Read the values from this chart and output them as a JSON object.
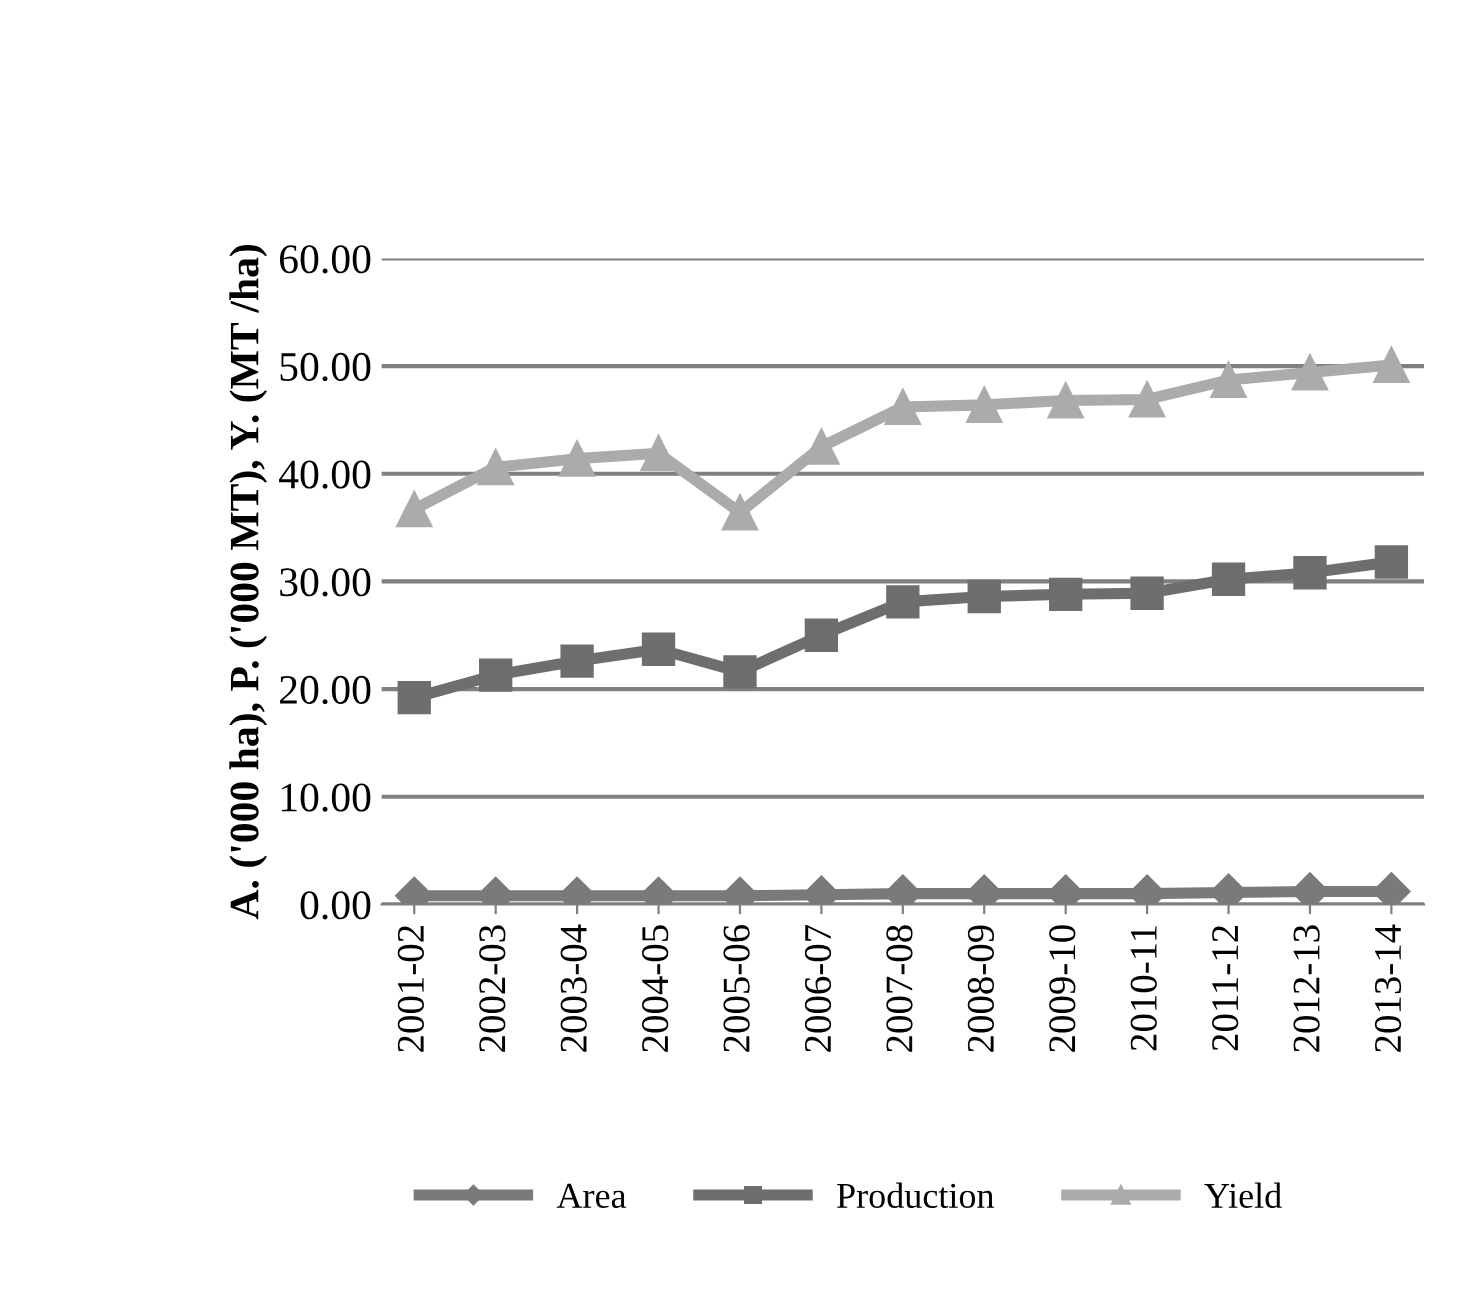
{
  "chart_data": {
    "type": "line",
    "ylabel": "A. ('000 ha), P. ('000 MT), Y. (MT /ha)",
    "categories": [
      "2001-02",
      "2002-03",
      "2003-04",
      "2004-05",
      "2005-06",
      "2006-07",
      "2007-08",
      "2008-09",
      "2009-10",
      "2010-11",
      "2011-12",
      "2012-13",
      "2013-14"
    ],
    "series": [
      {
        "name": "Area",
        "color": "#7a7a7a",
        "marker": "diamond",
        "values": [
          0.8,
          0.8,
          0.8,
          0.8,
          0.8,
          0.9,
          1.0,
          1.0,
          1.0,
          1.0,
          1.1,
          1.2,
          1.2
        ]
      },
      {
        "name": "Production",
        "color": "#6e6e6e",
        "marker": "square",
        "values": [
          19.2,
          21.3,
          22.6,
          23.7,
          21.6,
          25.0,
          28.1,
          28.6,
          28.8,
          28.9,
          30.2,
          30.8,
          31.8
        ]
      },
      {
        "name": "Yield",
        "color": "#ababab",
        "marker": "triangle",
        "values": [
          36.7,
          40.6,
          41.4,
          41.9,
          36.4,
          42.5,
          46.2,
          46.4,
          46.8,
          46.9,
          48.7,
          49.4,
          50.1
        ]
      }
    ],
    "ylim": [
      0,
      60
    ],
    "yticks": [
      {
        "value": 0,
        "label": "0.00"
      },
      {
        "value": 10,
        "label": "10.00"
      },
      {
        "value": 20,
        "label": "20.00"
      },
      {
        "value": 30,
        "label": "30.00"
      },
      {
        "value": 40,
        "label": "40.00"
      },
      {
        "value": 50,
        "label": "50.00"
      },
      {
        "value": 60,
        "label": "60.00"
      }
    ],
    "grid": "y",
    "legend": "bottom"
  }
}
